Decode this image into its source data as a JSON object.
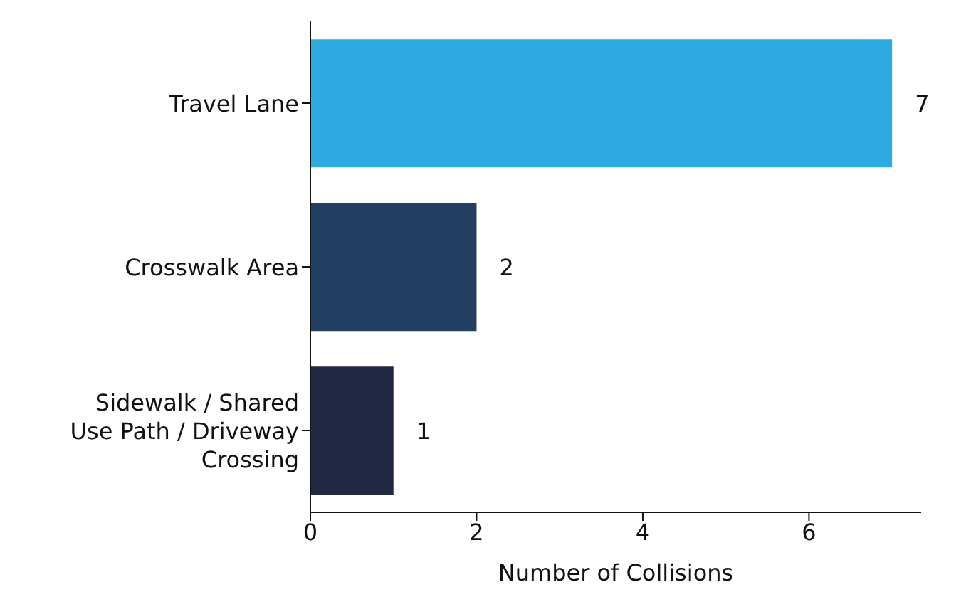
{
  "chart_data": {
    "type": "bar",
    "orientation": "horizontal",
    "categories": [
      "Travel Lane",
      "Crosswalk Area",
      "Sidewalk / Shared Use Path / Driveway Crossing"
    ],
    "values": [
      7,
      2,
      1
    ],
    "colors": [
      "#2eaae1",
      "#223e60",
      "#212843"
    ],
    "xlabel": "Number of Collisions",
    "xlim": [
      0,
      7.35
    ],
    "xticks": [
      0,
      2,
      4,
      6
    ],
    "data_labels": true
  }
}
